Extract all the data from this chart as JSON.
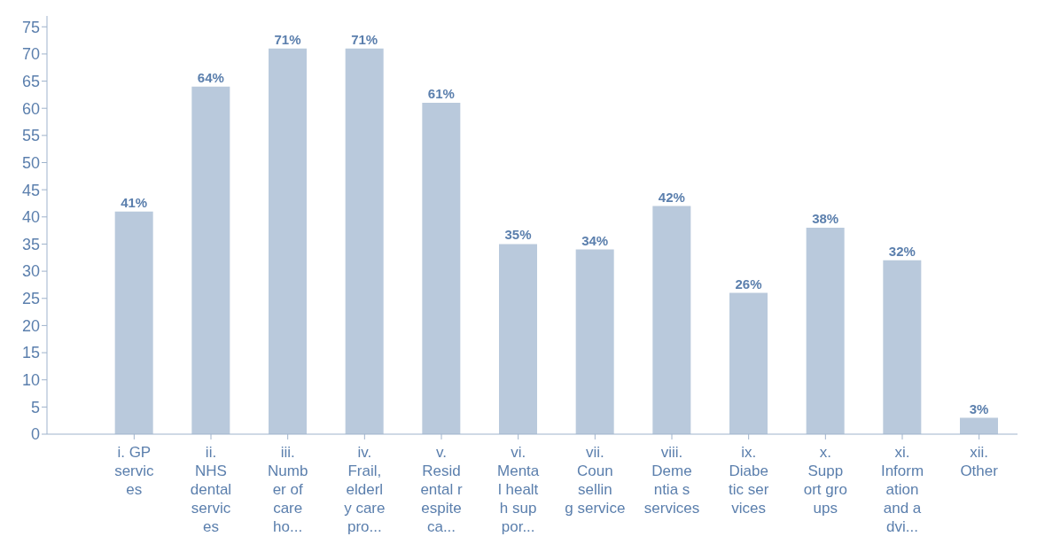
{
  "chart_data": {
    "type": "bar",
    "categories": [
      "i.  GP\nservic\nes",
      "ii.\nNHS\ndental\nservic\nes",
      "iii.\nNumb\ner of\ncare\nho...",
      "iv.\nFrail,\nelderl\ny care\npro...",
      "v.\nResid\nental r\nespite\nca...",
      "vi.\nMenta\nl healt\nh sup\npor...",
      "vii.\nCoun\nsellin\ng service",
      "viii.\nDeme\nntia s\nservices",
      "ix.\nDiabe\ntic ser\nvices",
      "x.\nSupp\nort gro\nups",
      "xi.\nInform\nation\nand a\ndvi...",
      "xii.\nOther"
    ],
    "values": [
      41,
      64,
      71,
      71,
      61,
      35,
      34,
      42,
      26,
      38,
      32,
      3
    ],
    "value_labels": [
      "41%",
      "64%",
      "71%",
      "71%",
      "61%",
      "35%",
      "34%",
      "42%",
      "26%",
      "38%",
      "32%",
      "3%"
    ],
    "color": "#b9c9dc",
    "ylim": [
      0,
      77
    ],
    "yticks": [
      0,
      5,
      10,
      15,
      20,
      25,
      30,
      35,
      40,
      45,
      50,
      55,
      60,
      65,
      70,
      75
    ],
    "grid": false,
    "legend": false
  }
}
